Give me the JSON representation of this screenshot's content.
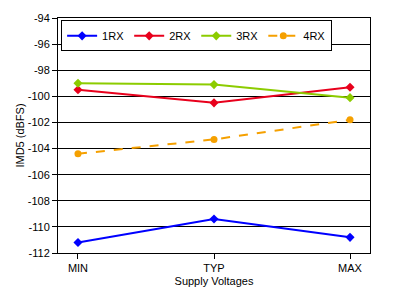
{
  "chart_data": {
    "type": "line",
    "x_label": "Supply Voltages",
    "y_label": "IMD5 (dBFS)",
    "categories": [
      "MIN",
      "TYP",
      "MAX"
    ],
    "series": [
      {
        "name": "1RX",
        "color": "#0000ff",
        "marker": "diamond",
        "line_style": "solid",
        "values": [
          -111.2,
          -109.4,
          -110.8
        ]
      },
      {
        "name": "2RX",
        "color": "#e8001c",
        "marker": "diamond",
        "line_style": "solid",
        "values": [
          -99.5,
          -100.5,
          -99.3
        ]
      },
      {
        "name": "3RX",
        "color": "#8ccc00",
        "marker": "diamond",
        "line_style": "solid",
        "values": [
          -99.0,
          -99.1,
          -100.1
        ]
      },
      {
        "name": "4RX",
        "color": "#f5a000",
        "marker": "circle",
        "line_style": "dash",
        "values": [
          -104.4,
          -103.3,
          -101.8
        ]
      }
    ],
    "ylim": [
      -112,
      -94
    ],
    "yticks": [
      -112,
      -110,
      -108,
      -106,
      -104,
      -102,
      -100,
      -98,
      -96,
      -94
    ],
    "grid": true,
    "legend": "top-left"
  }
}
